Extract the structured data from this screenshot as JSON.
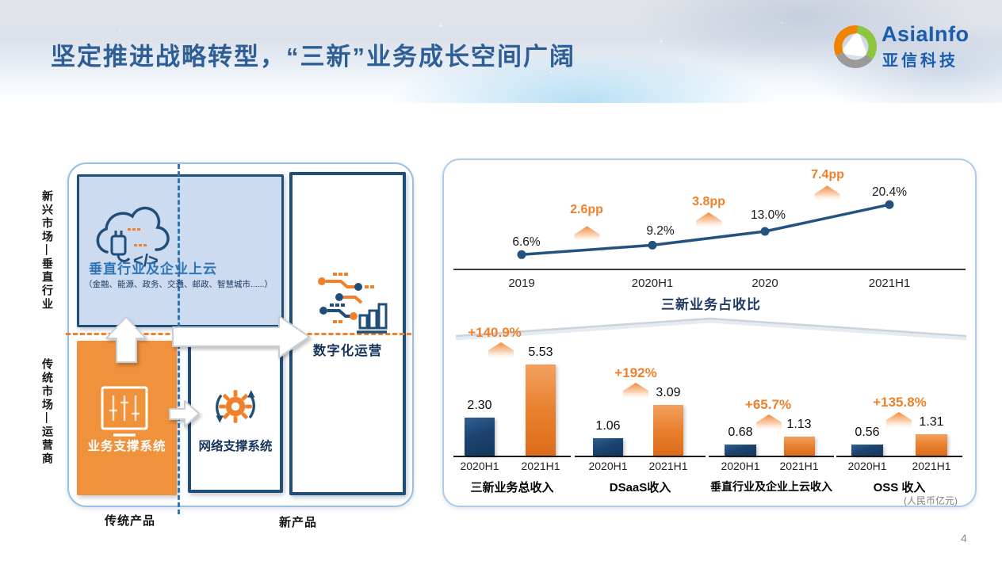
{
  "slide": {
    "title": "坚定推进战略转型，“三新”业务成长空间广阔",
    "page_number": "4"
  },
  "logo": {
    "name": "AsiaInfo",
    "name_cn": "亚信科技"
  },
  "diagram": {
    "axis_left_top": "新兴市场—垂直行业",
    "axis_left_bottom": "传统市场—运营商",
    "axis_bottom_left": "传统产品",
    "axis_bottom_right": "新产品",
    "cloud_box": {
      "title": "垂直行业及企业上云",
      "subtitle": "（金融、能源、政务、交通、邮政、智慧城市......）"
    },
    "bss_box": {
      "label": "业务支撑系统"
    },
    "nss_box": {
      "label": "网络支撑系统"
    },
    "digital_box": {
      "label": "数字化运营"
    }
  },
  "chart_data": [
    {
      "type": "line",
      "title": "三新业务占收比",
      "categories": [
        "2019",
        "2020H1",
        "2020",
        "2021H1"
      ],
      "values": [
        6.6,
        9.2,
        13.0,
        20.4
      ],
      "labels": [
        "6.6%",
        "9.2%",
        "13.0%",
        "20.4%"
      ],
      "deltas": [
        "2.6pp",
        "3.8pp",
        "7.4pp"
      ],
      "line_color": "#24527f",
      "delta_color": "#f0802a",
      "grid": false,
      "legend": "none"
    },
    {
      "type": "bar",
      "unit_note": "(人民币亿元)",
      "categories": [
        "2020H1",
        "2021H1"
      ],
      "bar_colors": {
        "2020H1": "#1c4470",
        "2021H1": "#e8812f"
      },
      "groups": [
        {
          "title": "三新业务总收入",
          "values": [
            2.3,
            5.53
          ],
          "labels": [
            "2.30",
            "5.53"
          ],
          "growth": "+140.9%"
        },
        {
          "title": "DSaaS收入",
          "values": [
            1.06,
            3.09
          ],
          "labels": [
            "1.06",
            "3.09"
          ],
          "growth": "+192%"
        },
        {
          "title": "垂直行业及企业上云收入",
          "values": [
            0.68,
            1.13
          ],
          "labels": [
            "0.68",
            "1.13"
          ],
          "growth": "+65.7%"
        },
        {
          "title": "OSS 收入",
          "values": [
            0.56,
            1.31
          ],
          "labels": [
            "0.56",
            "1.31"
          ],
          "growth": "+135.8%"
        }
      ]
    }
  ],
  "colors": {
    "navy": "#1f4770",
    "orange": "#f0802a",
    "light_blue_fill": "#ccdbf0",
    "panel_border": "#aecbea",
    "title_blue": "#2d5e96",
    "logo_blue": "#1a5dad"
  }
}
